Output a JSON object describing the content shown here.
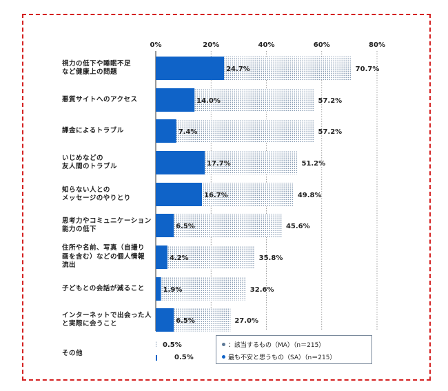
{
  "chart_data": {
    "type": "bar",
    "orientation": "horizontal",
    "xlim": [
      0,
      80
    ],
    "ticks": [
      "0%",
      "20%",
      "40%",
      "60%",
      "80%"
    ],
    "tick_values": [
      0,
      20,
      40,
      60,
      80
    ],
    "categories": [
      "視力の低下や睡眠不足\nなど健康上の問題",
      "悪質サイトへのアクセス",
      "課金によるトラブル",
      "いじめなどの\n友人間のトラブル",
      "知らない人との\nメッセージのやりとり",
      "思考力やコミュニケーション\n能力の低下",
      "住所や名前、写真（自撮り\n画を含む）などの個人情報\n流出",
      "子どもとの会話が減ること",
      "インターネットで出会った人\nと実際に会うこと",
      "その他"
    ],
    "series": [
      {
        "name": "該当するもの（MA）（n＝215）",
        "values": [
          70.7,
          57.2,
          57.2,
          51.2,
          49.8,
          45.6,
          35.8,
          32.6,
          27.0,
          0.5
        ],
        "labels": [
          "70.7%",
          "57.2%",
          "57.2%",
          "51.2%",
          "49.8%",
          "45.6%",
          "35.8%",
          "32.6%",
          "27.0%",
          "0.5%"
        ],
        "color": "#9fb0c4"
      },
      {
        "name": "最も不安と思うもの（SA）（n＝215）",
        "values": [
          24.7,
          14.0,
          7.4,
          17.7,
          16.7,
          6.5,
          4.2,
          1.9,
          6.5,
          0.5
        ],
        "labels": [
          "24.7%",
          "14.0%",
          "7.4%",
          "17.7%",
          "16.7%",
          "6.5%",
          "4.2%",
          "1.9%",
          "6.5%",
          "0.5%"
        ],
        "color": "#0f63c8"
      }
    ]
  },
  "legend": {
    "ma": "：該当するもの（MA）（n＝215）",
    "sa": "最も不安と思うもの（SA）（n＝215）"
  },
  "colors": {
    "frame": "#d42020",
    "sa": "#0f63c8",
    "ma_dot": "#5d7896"
  }
}
